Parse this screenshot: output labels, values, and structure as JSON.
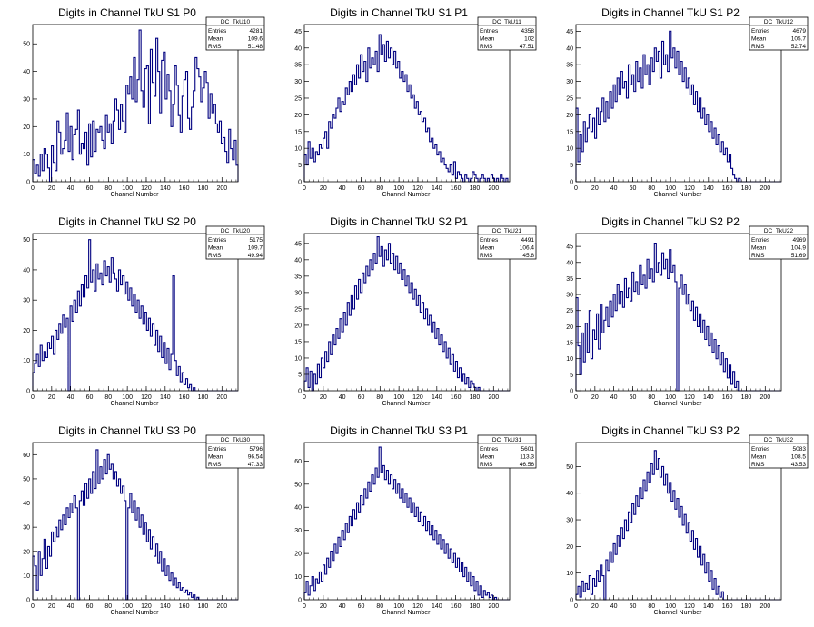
{
  "chart_data": [
    {
      "type": "histogram",
      "title": "Digits in Channel TkU S1 P0",
      "xlabel": "Channel Number",
      "xlim": [
        0,
        217
      ],
      "ylim": [
        0,
        57
      ],
      "xticks": [
        0,
        20,
        40,
        60,
        80,
        100,
        120,
        140,
        160,
        180,
        200
      ],
      "yticks": [
        0,
        10,
        20,
        30,
        40,
        50
      ],
      "stats": {
        "name": "DC_TkU10",
        "entries": "4281",
        "mean": "109.6",
        "rms": "51.48"
      },
      "values": [
        8,
        3,
        6,
        2,
        10,
        4,
        12,
        10,
        5,
        0,
        13,
        7,
        4,
        22,
        18,
        10,
        12,
        15,
        25,
        11,
        20,
        8,
        17,
        19,
        26,
        10,
        14,
        12,
        18,
        6,
        21,
        9,
        22,
        11,
        19,
        18,
        20,
        15,
        12,
        24,
        18,
        21,
        14,
        22,
        30,
        26,
        19,
        28,
        22,
        18,
        35,
        32,
        38,
        30,
        45,
        29,
        37,
        55,
        33,
        27,
        41,
        42,
        21,
        48,
        36,
        31,
        52,
        40,
        25,
        44,
        47,
        30,
        39,
        33,
        20,
        28,
        42,
        35,
        24,
        18,
        31,
        37,
        40,
        23,
        19,
        27,
        33,
        45,
        41,
        38,
        29,
        34,
        40,
        36,
        23,
        32,
        25,
        28,
        21,
        18,
        22,
        14,
        16,
        11,
        7,
        19,
        12,
        8,
        15,
        6
      ]
    },
    {
      "type": "histogram",
      "title": "Digits in Channel TkU S1 P1",
      "xlabel": "Channel Number",
      "xlim": [
        0,
        217
      ],
      "ylim": [
        0,
        47
      ],
      "xticks": [
        0,
        20,
        40,
        60,
        80,
        100,
        120,
        140,
        160,
        180,
        200
      ],
      "yticks": [
        0,
        5,
        10,
        15,
        20,
        25,
        30,
        35,
        40,
        45
      ],
      "stats": {
        "name": "DC_TkU11",
        "entries": "4358",
        "mean": "102",
        "rms": "47.51"
      },
      "values": [
        8,
        5,
        12,
        7,
        10,
        6,
        9,
        8,
        11,
        10,
        13,
        15,
        10,
        18,
        16,
        20,
        19,
        22,
        25,
        21,
        24,
        23,
        28,
        26,
        30,
        27,
        32,
        29,
        35,
        31,
        38,
        33,
        36,
        30,
        40,
        34,
        37,
        35,
        39,
        33,
        44,
        38,
        41,
        36,
        42,
        37,
        40,
        35,
        39,
        34,
        36,
        31,
        33,
        30,
        32,
        27,
        29,
        25,
        26,
        22,
        24,
        20,
        21,
        18,
        19,
        15,
        16,
        12,
        13,
        10,
        11,
        8,
        9,
        6,
        7,
        5,
        4,
        3,
        5,
        2,
        6,
        1,
        3,
        2,
        1,
        0,
        2,
        1,
        0,
        1,
        3,
        2,
        1,
        0,
        1,
        2,
        1,
        0,
        1,
        0,
        2,
        1,
        0,
        1,
        0,
        2,
        1,
        0,
        1,
        0
      ]
    },
    {
      "type": "histogram",
      "title": "Digits in Channel TkU S1 P2",
      "xlabel": "Channel Number",
      "xlim": [
        0,
        217
      ],
      "ylim": [
        0,
        47
      ],
      "xticks": [
        0,
        20,
        40,
        60,
        80,
        100,
        120,
        140,
        160,
        180,
        200
      ],
      "yticks": [
        0,
        5,
        10,
        15,
        20,
        25,
        30,
        35,
        40,
        45
      ],
      "stats": {
        "name": "DC_TkU12",
        "entries": "4679",
        "mean": "105.7",
        "rms": "52.74"
      },
      "values": [
        22,
        6,
        14,
        9,
        18,
        12,
        16,
        20,
        15,
        19,
        13,
        22,
        17,
        21,
        25,
        18,
        24,
        19,
        27,
        22,
        29,
        24,
        31,
        26,
        33,
        28,
        30,
        25,
        35,
        29,
        32,
        27,
        36,
        30,
        34,
        28,
        38,
        32,
        35,
        29,
        37,
        33,
        40,
        36,
        39,
        31,
        42,
        35,
        38,
        33,
        45,
        37,
        40,
        34,
        39,
        32,
        36,
        30,
        34,
        28,
        31,
        26,
        29,
        23,
        27,
        21,
        25,
        19,
        22,
        17,
        20,
        15,
        18,
        13,
        16,
        11,
        14,
        9,
        12,
        8,
        10,
        6,
        8,
        4,
        2,
        1,
        0,
        1,
        0,
        0,
        0,
        0,
        0,
        0,
        0,
        0,
        0,
        0,
        0,
        0,
        0,
        0,
        0,
        0,
        0,
        0,
        0,
        0,
        0,
        0
      ]
    },
    {
      "type": "histogram",
      "title": "Digits in Channel TkU S2 P0",
      "xlabel": "Channel Number",
      "xlim": [
        0,
        217
      ],
      "ylim": [
        0,
        52
      ],
      "xticks": [
        0,
        20,
        40,
        60,
        80,
        100,
        120,
        140,
        160,
        180,
        200
      ],
      "yticks": [
        0,
        10,
        20,
        30,
        40,
        50
      ],
      "stats": {
        "name": "DC_TkU20",
        "entries": "5175",
        "mean": "109.7",
        "rms": "49.94"
      },
      "values": [
        6,
        9,
        12,
        8,
        15,
        10,
        13,
        11,
        16,
        14,
        18,
        12,
        20,
        17,
        22,
        19,
        25,
        21,
        24,
        0,
        28,
        23,
        30,
        26,
        33,
        28,
        35,
        31,
        38,
        34,
        50,
        36,
        40,
        33,
        42,
        37,
        39,
        35,
        43,
        38,
        41,
        36,
        44,
        39,
        37,
        33,
        40,
        35,
        38,
        32,
        36,
        30,
        34,
        28,
        32,
        26,
        30,
        24,
        28,
        22,
        26,
        20,
        24,
        18,
        22,
        15,
        20,
        13,
        18,
        11,
        16,
        9,
        14,
        7,
        12,
        38,
        10,
        5,
        8,
        3,
        6,
        2,
        4,
        1,
        2,
        0,
        1,
        0,
        0,
        0,
        0,
        0,
        0,
        0,
        0,
        0,
        0,
        0,
        0,
        0,
        0,
        0,
        0,
        0,
        0,
        0,
        0,
        0,
        0,
        0
      ]
    },
    {
      "type": "histogram",
      "title": "Digits in Channel TkU S2 P1",
      "xlabel": "Channel Number",
      "xlim": [
        0,
        217
      ],
      "ylim": [
        0,
        48
      ],
      "xticks": [
        0,
        20,
        40,
        60,
        80,
        100,
        120,
        140,
        160,
        180,
        200
      ],
      "yticks": [
        0,
        5,
        10,
        15,
        20,
        25,
        30,
        35,
        40,
        45
      ],
      "stats": {
        "name": "DC_TkU21",
        "entries": "4491",
        "mean": "106.4",
        "rms": "45.8"
      },
      "values": [
        3,
        7,
        1,
        6,
        0,
        5,
        2,
        8,
        4,
        10,
        7,
        12,
        9,
        15,
        11,
        17,
        14,
        19,
        16,
        22,
        18,
        24,
        20,
        27,
        23,
        29,
        25,
        32,
        28,
        34,
        30,
        36,
        33,
        38,
        35,
        40,
        37,
        42,
        39,
        47,
        41,
        44,
        38,
        43,
        40,
        45,
        39,
        42,
        37,
        41,
        36,
        39,
        34,
        37,
        32,
        35,
        30,
        33,
        28,
        31,
        26,
        29,
        24,
        27,
        22,
        25,
        20,
        23,
        18,
        21,
        16,
        19,
        14,
        17,
        12,
        15,
        10,
        13,
        8,
        11,
        6,
        9,
        4,
        7,
        3,
        5,
        2,
        4,
        1,
        3,
        2,
        1,
        0,
        1,
        0,
        0,
        0,
        0,
        0,
        0,
        0,
        0,
        0,
        0,
        0,
        0,
        0,
        0,
        0,
        0
      ]
    },
    {
      "type": "histogram",
      "title": "Digits in Channel TkU S2 P2",
      "xlabel": "Channel Number",
      "xlim": [
        0,
        217
      ],
      "ylim": [
        0,
        49
      ],
      "xticks": [
        0,
        20,
        40,
        60,
        80,
        100,
        120,
        140,
        160,
        180,
        200
      ],
      "yticks": [
        0,
        5,
        10,
        15,
        20,
        25,
        30,
        35,
        40,
        45
      ],
      "stats": {
        "name": "DC_TkU22",
        "entries": "4969",
        "mean": "104.9",
        "rms": "51.69"
      },
      "values": [
        29,
        14,
        5,
        18,
        9,
        21,
        12,
        25,
        10,
        19,
        16,
        24,
        13,
        27,
        18,
        22,
        26,
        20,
        28,
        23,
        30,
        25,
        33,
        27,
        31,
        26,
        35,
        29,
        32,
        28,
        37,
        31,
        34,
        30,
        39,
        33,
        36,
        32,
        41,
        35,
        38,
        34,
        46,
        37,
        40,
        36,
        43,
        38,
        41,
        35,
        44,
        37,
        39,
        34,
        0,
        32,
        36,
        30,
        33,
        27,
        30,
        25,
        28,
        22,
        26,
        20,
        24,
        18,
        22,
        16,
        20,
        14,
        18,
        12,
        16,
        10,
        14,
        8,
        12,
        6,
        10,
        4,
        8,
        2,
        6,
        1,
        3,
        0,
        0,
        0,
        0,
        0,
        0,
        0,
        0,
        0,
        0,
        0,
        0,
        0,
        0,
        0,
        0,
        0,
        0,
        0,
        0,
        0,
        0,
        0
      ]
    },
    {
      "type": "histogram",
      "title": "Digits in Channel TkU S3 P0",
      "xlabel": "Channel Number",
      "xlim": [
        0,
        217
      ],
      "ylim": [
        0,
        65
      ],
      "xticks": [
        0,
        20,
        40,
        60,
        80,
        100,
        120,
        140,
        160,
        180,
        200
      ],
      "yticks": [
        0,
        10,
        20,
        30,
        40,
        50,
        60
      ],
      "stats": {
        "name": "DC_TkU30",
        "entries": "5796",
        "mean": "96.54",
        "rms": "47.33"
      },
      "values": [
        18,
        14,
        4,
        20,
        10,
        17,
        25,
        13,
        22,
        18,
        28,
        24,
        30,
        26,
        33,
        29,
        35,
        31,
        38,
        34,
        40,
        36,
        43,
        38,
        0,
        41,
        45,
        39,
        48,
        42,
        50,
        44,
        53,
        46,
        62,
        48,
        55,
        50,
        58,
        52,
        60,
        54,
        56,
        50,
        53,
        47,
        50,
        44,
        47,
        41,
        0,
        38,
        44,
        36,
        41,
        33,
        38,
        30,
        35,
        27,
        32,
        24,
        29,
        21,
        26,
        18,
        23,
        15,
        20,
        12,
        17,
        10,
        14,
        8,
        11,
        6,
        9,
        5,
        7,
        4,
        5,
        3,
        4,
        2,
        3,
        1,
        2,
        0,
        1,
        0,
        0,
        0,
        0,
        0,
        0,
        0,
        0,
        0,
        0,
        0,
        0,
        0,
        0,
        0,
        0,
        0,
        0,
        0,
        0,
        0
      ]
    },
    {
      "type": "histogram",
      "title": "Digits in Channel TkU S3 P1",
      "xlabel": "Channel Number",
      "xlim": [
        0,
        217
      ],
      "ylim": [
        0,
        68
      ],
      "xticks": [
        0,
        20,
        40,
        60,
        80,
        100,
        120,
        140,
        160,
        180,
        200
      ],
      "yticks": [
        0,
        10,
        20,
        30,
        40,
        50,
        60
      ],
      "stats": {
        "name": "DC_TkU31",
        "entries": "5601",
        "mean": "113.3",
        "rms": "46.56"
      },
      "values": [
        3,
        8,
        2,
        6,
        10,
        4,
        9,
        7,
        12,
        8,
        15,
        11,
        18,
        14,
        21,
        17,
        24,
        20,
        27,
        23,
        30,
        26,
        33,
        29,
        36,
        32,
        39,
        35,
        42,
        38,
        45,
        41,
        48,
        44,
        51,
        47,
        54,
        50,
        57,
        53,
        66,
        55,
        58,
        52,
        56,
        50,
        54,
        48,
        52,
        46,
        50,
        44,
        48,
        42,
        46,
        40,
        44,
        38,
        42,
        36,
        40,
        34,
        38,
        32,
        36,
        30,
        34,
        28,
        32,
        26,
        30,
        24,
        28,
        22,
        26,
        20,
        24,
        18,
        22,
        16,
        20,
        14,
        18,
        12,
        16,
        10,
        14,
        8,
        12,
        6,
        10,
        4,
        8,
        2,
        6,
        1,
        4,
        2,
        3,
        1,
        2,
        0,
        1,
        0,
        0,
        0,
        0,
        0,
        0,
        0
      ]
    },
    {
      "type": "histogram",
      "title": "Digits in Channel TkU S3 P2",
      "xlabel": "Channel Number",
      "xlim": [
        0,
        217
      ],
      "ylim": [
        0,
        59
      ],
      "xticks": [
        0,
        20,
        40,
        60,
        80,
        100,
        120,
        140,
        160,
        180,
        200
      ],
      "yticks": [
        0,
        10,
        20,
        30,
        40,
        50
      ],
      "stats": {
        "name": "DC_TkU32",
        "entries": "5083",
        "mean": "108.5",
        "rms": "43.53"
      },
      "values": [
        2,
        5,
        1,
        7,
        3,
        6,
        4,
        9,
        2,
        8,
        5,
        11,
        7,
        13,
        9,
        0,
        15,
        11,
        18,
        14,
        21,
        17,
        24,
        20,
        27,
        23,
        30,
        26,
        33,
        29,
        36,
        32,
        39,
        35,
        42,
        38,
        45,
        41,
        48,
        44,
        51,
        47,
        56,
        49,
        53,
        46,
        50,
        43,
        47,
        40,
        44,
        37,
        41,
        34,
        38,
        31,
        35,
        28,
        32,
        25,
        29,
        22,
        26,
        19,
        23,
        16,
        20,
        13,
        17,
        10,
        14,
        7,
        11,
        4,
        8,
        2,
        5,
        1,
        3,
        0,
        0,
        0,
        0,
        0,
        0,
        0,
        0,
        0,
        0,
        0,
        0,
        0,
        0,
        0,
        0,
        0,
        0,
        0,
        0,
        0,
        0,
        0,
        0,
        0,
        0,
        0,
        0,
        0,
        0,
        0
      ]
    }
  ],
  "stats_labels": {
    "entries": "Entries",
    "mean": "Mean",
    "rms": "RMS"
  },
  "colors": {
    "line": "#000080",
    "frame": "#000000",
    "background": "#ffffff"
  }
}
